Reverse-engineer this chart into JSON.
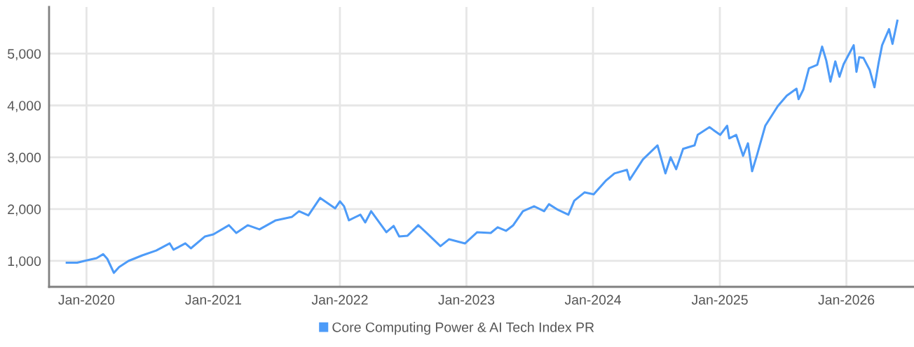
{
  "chart_data": {
    "type": "line",
    "x": [
      "2019-11-05",
      "2019-12-05",
      "2020-01-01",
      "2020-01-30",
      "2020-02-18",
      "2020-03-01",
      "2020-03-20",
      "2020-04-04",
      "2020-05-01",
      "2020-06-10",
      "2020-07-20",
      "2020-08-28",
      "2020-09-08",
      "2020-10-12",
      "2020-10-28",
      "2020-12-08",
      "2021-01-01",
      "2021-02-15",
      "2021-03-08",
      "2021-04-10",
      "2021-05-14",
      "2021-06-30",
      "2021-08-16",
      "2021-09-05",
      "2021-10-02",
      "2021-11-05",
      "2021-12-18",
      "2022-01-01",
      "2022-01-13",
      "2022-01-27",
      "2022-03-01",
      "2022-03-15",
      "2022-04-01",
      "2022-05-15",
      "2022-06-05",
      "2022-06-21",
      "2022-07-15",
      "2022-08-15",
      "2022-09-08",
      "2022-10-18",
      "2022-11-12",
      "2022-12-28",
      "2023-02-01",
      "2023-03-12",
      "2023-04-01",
      "2023-04-25",
      "2023-05-16",
      "2023-06-13",
      "2023-07-15",
      "2023-08-13",
      "2023-08-27",
      "2023-09-22",
      "2023-10-22",
      "2023-11-08",
      "2023-12-08",
      "2024-01-03",
      "2024-02-08",
      "2024-03-03",
      "2024-04-08",
      "2024-04-16",
      "2024-05-24",
      "2024-07-05",
      "2024-07-28",
      "2024-08-12",
      "2024-08-28",
      "2024-09-17",
      "2024-10-20",
      "2024-10-29",
      "2024-12-02",
      "2025-01-02",
      "2025-01-22",
      "2025-01-28",
      "2025-02-17",
      "2025-03-09",
      "2025-03-23",
      "2025-04-04",
      "2025-04-18",
      "2025-05-12",
      "2025-06-17",
      "2025-07-13",
      "2025-08-10",
      "2025-08-16",
      "2025-08-30",
      "2025-09-15",
      "2025-10-09",
      "2025-10-23",
      "2025-11-04",
      "2025-11-16",
      "2025-11-30",
      "2025-12-12",
      "2025-12-24",
      "2026-01-08",
      "2026-01-22",
      "2026-01-30",
      "2026-02-07",
      "2026-02-19",
      "2026-03-09",
      "2026-03-23",
      "2026-04-04",
      "2026-04-14",
      "2026-05-04",
      "2026-05-14",
      "2026-05-28"
    ],
    "series": [
      {
        "name": "Core Computing Power & AI Tech Index PR",
        "color": "#4d9bf8",
        "values": [
          965,
          965,
          1010,
          1054,
          1130,
          1040,
          770,
          882,
          1000,
          1108,
          1200,
          1338,
          1216,
          1338,
          1243,
          1473,
          1513,
          1689,
          1540,
          1689,
          1608,
          1784,
          1851,
          1959,
          1878,
          2216,
          2014,
          2149,
          2054,
          1784,
          1892,
          1743,
          1959,
          1554,
          1676,
          1473,
          1486,
          1689,
          1540,
          1284,
          1419,
          1338,
          1554,
          1540,
          1649,
          1581,
          1689,
          1959,
          2054,
          1959,
          2095,
          1986,
          1892,
          2162,
          2324,
          2284,
          2554,
          2689,
          2757,
          2568,
          2959,
          3230,
          2689,
          3000,
          2770,
          3162,
          3230,
          3432,
          3581,
          3432,
          3608,
          3365,
          3432,
          3027,
          3270,
          2730,
          3040,
          3608,
          3986,
          4189,
          4324,
          4122,
          4311,
          4716,
          4784,
          5135,
          4865,
          4459,
          4851,
          4554,
          4797,
          4986,
          5162,
          4649,
          4932,
          4919,
          4689,
          4351,
          4824,
          5162,
          5473,
          5189,
          5635
        ]
      }
    ],
    "xlim": [
      "2019-09-15",
      "2026-07-15"
    ],
    "xticks": [
      {
        "value": "2020-01-01",
        "label": "Jan-2020"
      },
      {
        "value": "2021-01-01",
        "label": "Jan-2021"
      },
      {
        "value": "2022-01-01",
        "label": "Jan-2022"
      },
      {
        "value": "2023-01-01",
        "label": "Jan-2023"
      },
      {
        "value": "2024-01-01",
        "label": "Jan-2024"
      },
      {
        "value": "2025-01-01",
        "label": "Jan-2025"
      },
      {
        "value": "2026-01-01",
        "label": "Jan-2026"
      }
    ],
    "ylim": [
      500,
      5900
    ],
    "yticks": [
      {
        "value": 1000,
        "label": "1,000"
      },
      {
        "value": 2000,
        "label": "2,000"
      },
      {
        "value": 3000,
        "label": "3,000"
      },
      {
        "value": 4000,
        "label": "4,000"
      },
      {
        "value": 5000,
        "label": "5,000"
      }
    ],
    "grid": true,
    "legend": "bottom"
  }
}
